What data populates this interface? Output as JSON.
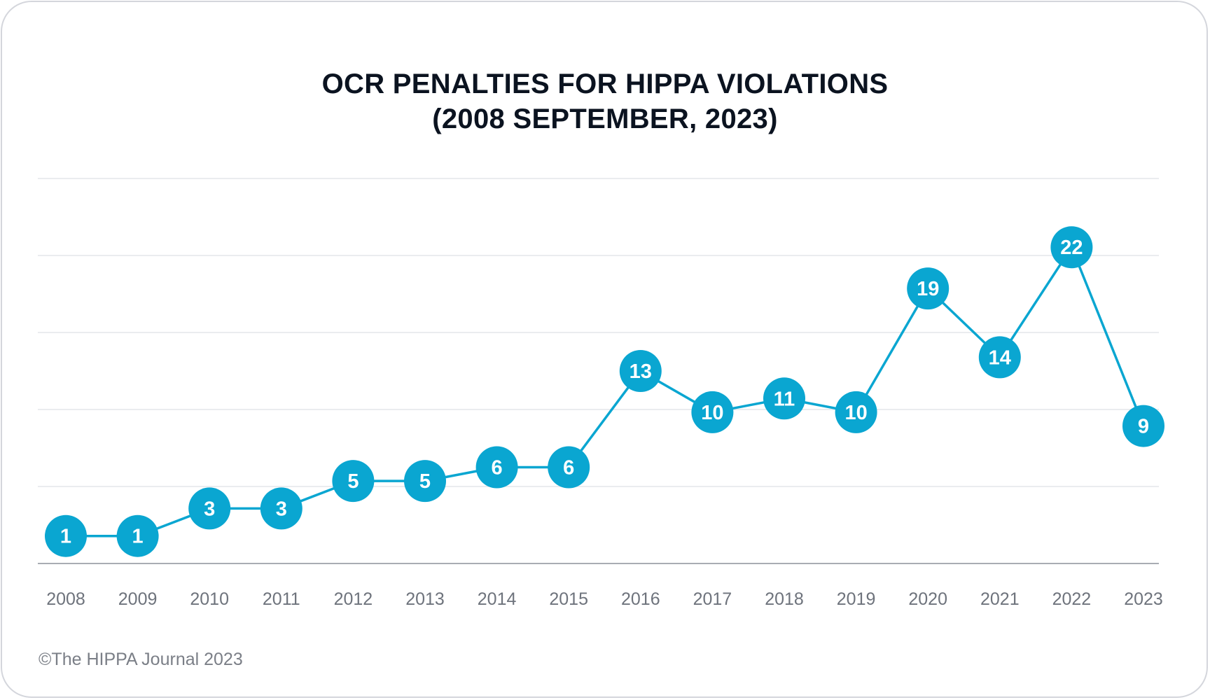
{
  "chart_data": {
    "type": "line",
    "title": "OCR PENALTIES FOR HIPPA VIOLATIONS",
    "subtitle": "(2008 SEPTEMBER, 2023)",
    "categories": [
      "2008",
      "2009",
      "2010",
      "2011",
      "2012",
      "2013",
      "2014",
      "2015",
      "2016",
      "2017",
      "2018",
      "2019",
      "2020",
      "2021",
      "2022",
      "2023"
    ],
    "series": [
      {
        "name": "OCR Penalties",
        "values": [
          1,
          1,
          3,
          3,
          5,
          5,
          6,
          6,
          13,
          10,
          11,
          10,
          19,
          14,
          22,
          9
        ]
      }
    ],
    "xlabel": "",
    "ylabel": "",
    "ylim": [
      -1,
      27
    ],
    "grid": true,
    "colors": {
      "line": "#0aa6d1",
      "marker": "#0aa6d1",
      "label": "#ffffff",
      "grid": "#e4e6ea",
      "axis": "#a9acb3",
      "tick": "#6e737c"
    }
  },
  "footer": {
    "credit": "©The HIPPA Journal 2023"
  }
}
